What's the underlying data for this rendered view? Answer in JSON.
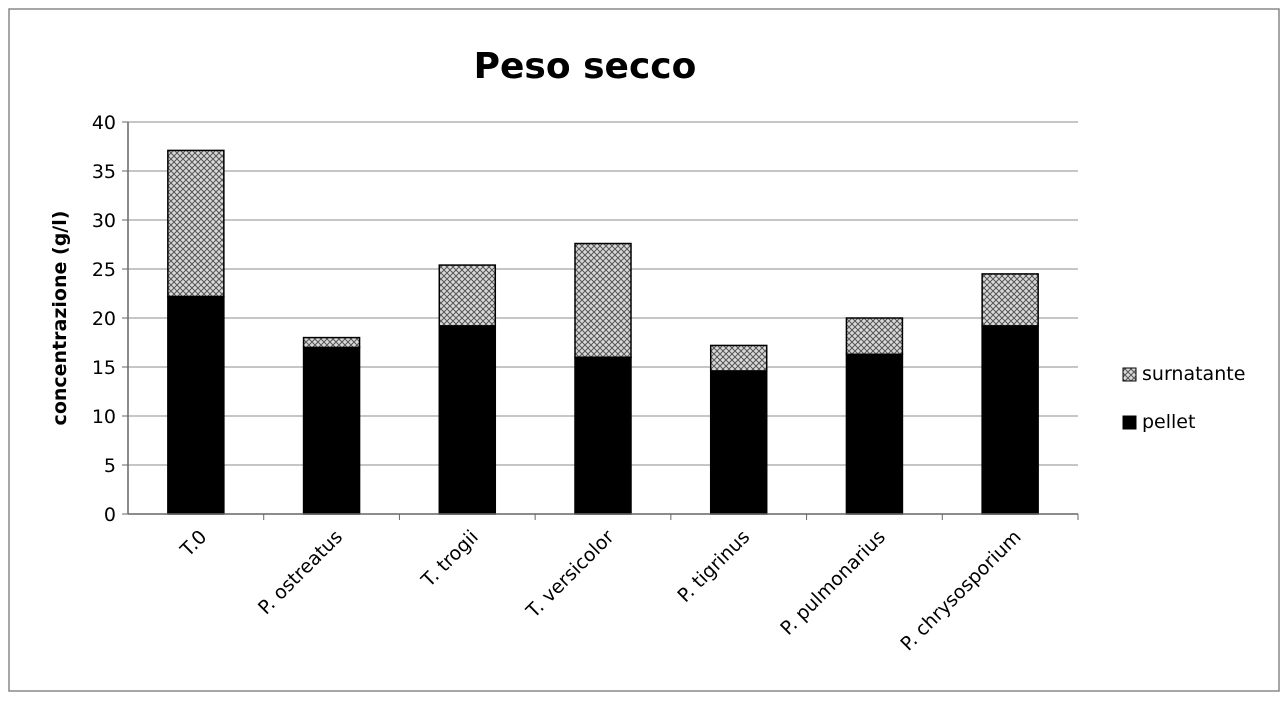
{
  "chart_data": {
    "type": "bar",
    "stacked": true,
    "title": "Peso secco",
    "xlabel": "",
    "ylabel": "concentrazione (g/l)",
    "ylim": [
      0,
      40
    ],
    "yticks": [
      0,
      5,
      10,
      15,
      20,
      25,
      30,
      35,
      40
    ],
    "grid": true,
    "legend_position": "right",
    "categories": [
      "T.0",
      "P. ostreatus",
      "T. trogii",
      "T. versicolor",
      "P. tigrinus",
      "P. pulmonarius",
      "P. chrysosporium"
    ],
    "series": [
      {
        "name": "pellet",
        "color": "#000000",
        "values": [
          22.2,
          17.0,
          19.2,
          16.0,
          14.6,
          16.3,
          19.2
        ]
      },
      {
        "name": "surnatante",
        "color": "#a8a8a8",
        "pattern": "crosshatch",
        "values": [
          14.9,
          1.0,
          6.2,
          11.6,
          2.6,
          3.7,
          5.3
        ]
      }
    ]
  }
}
